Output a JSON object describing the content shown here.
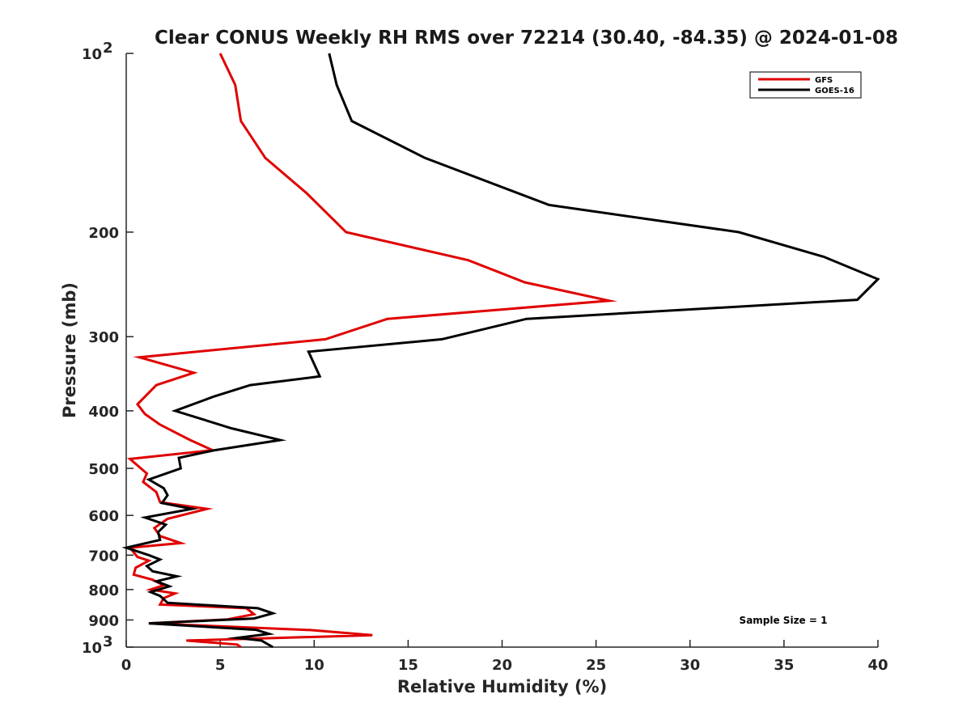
{
  "chart_data": {
    "type": "line",
    "title": "Clear CONUS Weekly RH RMS over 72214 (30.40, -84.35) @ 2024-01-08",
    "xlabel": "Relative Humidity (%)",
    "ylabel": "Pressure (mb)",
    "xlim": [
      0,
      40
    ],
    "ylim": [
      100,
      1000
    ],
    "yscale": "log",
    "yreversed": true,
    "x_ticks": [
      0,
      5,
      10,
      15,
      20,
      25,
      30,
      35,
      40
    ],
    "y_ticks": [
      {
        "value": 100,
        "label": "10",
        "sup": "2"
      },
      {
        "value": 200,
        "label": "200",
        "sup": ""
      },
      {
        "value": 300,
        "label": "300",
        "sup": ""
      },
      {
        "value": 400,
        "label": "400",
        "sup": ""
      },
      {
        "value": 500,
        "label": "500",
        "sup": ""
      },
      {
        "value": 600,
        "label": "600",
        "sup": ""
      },
      {
        "value": 700,
        "label": "700",
        "sup": ""
      },
      {
        "value": 800,
        "label": "800",
        "sup": ""
      },
      {
        "value": 900,
        "label": "900",
        "sup": ""
      },
      {
        "value": 1000,
        "label": "10",
        "sup": "3"
      }
    ],
    "legend_position": "top-right",
    "annotation": "Sample Size = 1",
    "series": [
      {
        "name": "GFS",
        "color": "#e00000",
        "points": [
          [
            5.0,
            100
          ],
          [
            5.8,
            113
          ],
          [
            6.1,
            130
          ],
          [
            7.4,
            150
          ],
          [
            9.6,
            172
          ],
          [
            11.7,
            200
          ],
          [
            18.2,
            223
          ],
          [
            21.2,
            243
          ],
          [
            25.7,
            261
          ],
          [
            13.9,
            280
          ],
          [
            10.6,
            303
          ],
          [
            0.7,
            325
          ],
          [
            3.6,
            345
          ],
          [
            1.6,
            362
          ],
          [
            0.6,
            390
          ],
          [
            1.0,
            405
          ],
          [
            1.8,
            422
          ],
          [
            3.4,
            448
          ],
          [
            4.6,
            466
          ],
          [
            0.2,
            482
          ],
          [
            1.1,
            510
          ],
          [
            0.9,
            527
          ],
          [
            1.6,
            548
          ],
          [
            1.8,
            570
          ],
          [
            4.3,
            585
          ],
          [
            2.2,
            608
          ],
          [
            1.5,
            630
          ],
          [
            1.8,
            650
          ],
          [
            2.9,
            668
          ],
          [
            0.2,
            680
          ],
          [
            0.6,
            705
          ],
          [
            1.2,
            715
          ],
          [
            0.5,
            735
          ],
          [
            0.4,
            755
          ],
          [
            1.4,
            770
          ],
          [
            2.0,
            787
          ],
          [
            1.3,
            800
          ],
          [
            2.6,
            812
          ],
          [
            2.0,
            827
          ],
          [
            1.8,
            848
          ],
          [
            6.4,
            860
          ],
          [
            6.8,
            880
          ],
          [
            5.4,
            898
          ],
          [
            1.2,
            912
          ],
          [
            9.8,
            936
          ],
          [
            13.1,
            955
          ],
          [
            3.2,
            975
          ],
          [
            5.9,
            990
          ],
          [
            6.1,
            1000
          ]
        ]
      },
      {
        "name": "GOES-16",
        "color": "#000000",
        "points": [
          [
            10.8,
            100
          ],
          [
            11.2,
            113
          ],
          [
            12.0,
            130
          ],
          [
            15.9,
            150
          ],
          [
            22.5,
            180
          ],
          [
            32.6,
            200
          ],
          [
            37.1,
            220
          ],
          [
            40.0,
            240
          ],
          [
            38.9,
            260
          ],
          [
            21.3,
            280
          ],
          [
            16.8,
            303
          ],
          [
            9.7,
            318
          ],
          [
            10.3,
            350
          ],
          [
            6.6,
            362
          ],
          [
            4.7,
            378
          ],
          [
            2.6,
            400
          ],
          [
            5.6,
            428
          ],
          [
            8.2,
            448
          ],
          [
            4.7,
            466
          ],
          [
            2.8,
            480
          ],
          [
            2.9,
            500
          ],
          [
            1.2,
            522
          ],
          [
            2.0,
            540
          ],
          [
            2.2,
            555
          ],
          [
            1.9,
            572
          ],
          [
            3.5,
            585
          ],
          [
            1.0,
            605
          ],
          [
            2.1,
            622
          ],
          [
            1.7,
            640
          ],
          [
            1.8,
            660
          ],
          [
            0.0,
            680
          ],
          [
            1.2,
            700
          ],
          [
            1.8,
            712
          ],
          [
            1.1,
            730
          ],
          [
            1.4,
            745
          ],
          [
            2.7,
            760
          ],
          [
            1.6,
            775
          ],
          [
            2.3,
            790
          ],
          [
            1.3,
            808
          ],
          [
            1.8,
            820
          ],
          [
            2.2,
            842
          ],
          [
            7.0,
            860
          ],
          [
            7.8,
            877
          ],
          [
            6.8,
            895
          ],
          [
            1.2,
            912
          ],
          [
            6.9,
            935
          ],
          [
            7.6,
            950
          ],
          [
            5.9,
            965
          ],
          [
            7.2,
            975
          ],
          [
            7.8,
            1000
          ]
        ]
      }
    ]
  }
}
